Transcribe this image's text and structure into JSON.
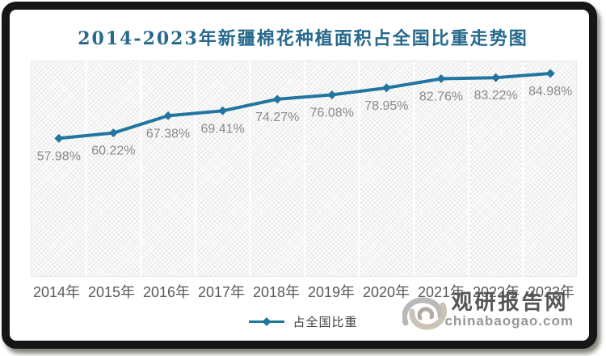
{
  "title": "2014-2023年新疆棉花种植面积占全国比重走势图",
  "chart_data": {
    "type": "line",
    "title": "2014-2023年新疆棉花种植面积占全国比重走势图",
    "categories": [
      "2014年",
      "2015年",
      "2016年",
      "2017年",
      "2018年",
      "2019年",
      "2020年",
      "2021年",
      "2022年",
      "2023年"
    ],
    "series": [
      {
        "name": "占全国比重",
        "values": [
          57.98,
          60.22,
          67.38,
          69.41,
          74.27,
          76.08,
          78.95,
          82.76,
          83.22,
          84.98
        ],
        "data_labels": [
          "57.98%",
          "60.22%",
          "67.38%",
          "69.41%",
          "74.27%",
          "76.08%",
          "78.95%",
          "82.76%",
          "83.22%",
          "84.98%"
        ],
        "color": "#21769f",
        "marker": "diamond"
      }
    ],
    "xlabel": "",
    "ylabel": "",
    "ylim": [
      0,
      90
    ],
    "y_axis_visible": false,
    "grid": "vertical-column-separators",
    "legend_position": "bottom",
    "plot_background": "diagonal-hatch"
  },
  "legend": {
    "label": "占全国比重"
  },
  "watermark": {
    "site_name": "观研报告网",
    "site_domain": "chinabaogao.com",
    "logo": "swirl-logo"
  },
  "colors": {
    "accent_line": "#21769f",
    "title_text": "#26698c",
    "data_label_text": "#8a8a8a",
    "axis_label_text": "#595959",
    "watermark_text": "#565656",
    "watermark_domain_text": "#969696",
    "frame": "#161616",
    "gridline": "#ffffff"
  }
}
